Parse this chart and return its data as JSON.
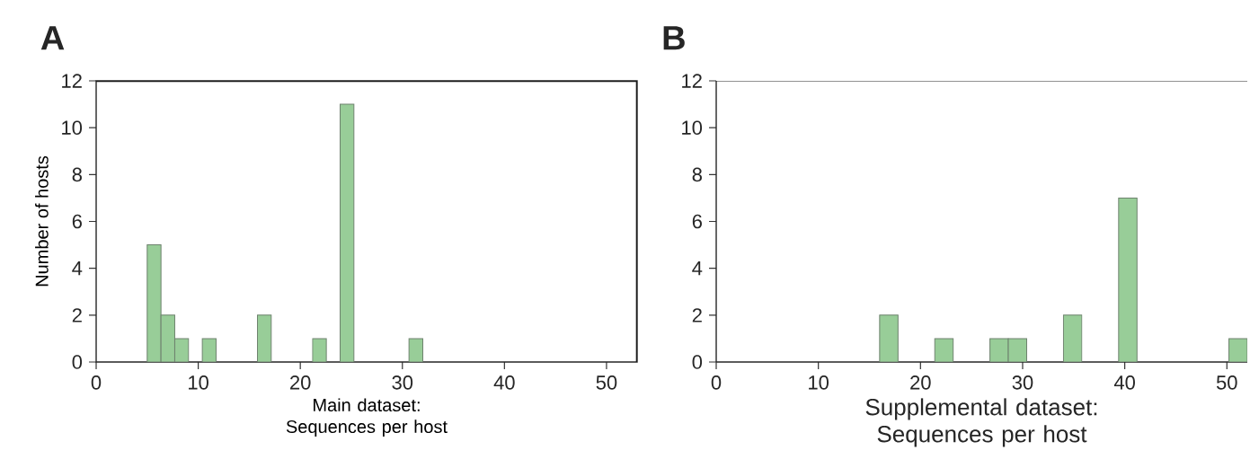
{
  "chart_data": [
    {
      "type": "histogram",
      "title": "A",
      "xlabel": "Main dataset: Sequences per host",
      "ylabel": "Number of hosts",
      "color": "#98cd98",
      "bins": [
        5,
        6.35,
        7.7,
        9.05,
        10.4,
        11.75,
        13.1,
        14.45,
        15.8,
        17.15,
        18.5,
        19.85,
        21.2,
        22.55,
        23.9,
        25.25,
        26.6,
        27.95,
        29.3,
        30.65,
        32
      ],
      "values": [
        5,
        2,
        1,
        0,
        1,
        0,
        0,
        0,
        2,
        0,
        0,
        0,
        1,
        0,
        11,
        0,
        0,
        0,
        0,
        1
      ],
      "xlim": [
        0,
        53
      ],
      "ylim": [
        0,
        12
      ],
      "xticks": [
        0,
        10,
        20,
        30,
        40,
        50
      ],
      "yticks": [
        0,
        2,
        4,
        6,
        8,
        10,
        12
      ]
    },
    {
      "type": "histogram",
      "title": "B",
      "xlabel": "Supplemental dataset: Sequences per host",
      "color": "#98cd98",
      "bins": [
        16,
        17.8,
        19.6,
        21.4,
        23.2,
        25,
        26.8,
        28.6,
        30.4,
        32.2,
        34,
        35.8,
        37.6,
        39.4,
        41.2,
        43,
        44.8,
        46.6,
        48.4,
        50.2,
        52
      ],
      "values": [
        2,
        0,
        0,
        1,
        0,
        0,
        1,
        1,
        0,
        0,
        2,
        0,
        0,
        7,
        0,
        0,
        0,
        0,
        0,
        1
      ],
      "xlim": [
        0,
        52
      ],
      "ylim": [
        0,
        12
      ],
      "xticks": [
        0,
        10,
        20,
        30,
        40,
        50
      ],
      "yticks": [
        0,
        2,
        4,
        6,
        8,
        10,
        12
      ]
    }
  ]
}
